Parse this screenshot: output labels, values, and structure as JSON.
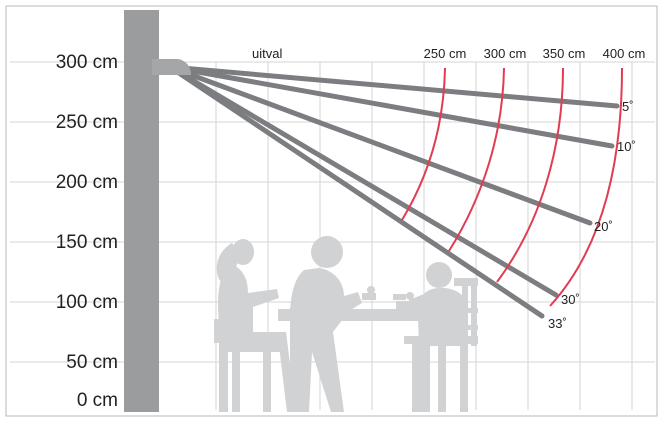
{
  "y_axis": {
    "ticks": [
      "300 cm",
      "250 cm",
      "200 cm",
      "150 cm",
      "100 cm",
      "50 cm",
      "0 cm"
    ]
  },
  "caption": "uitval",
  "distances": [
    "250 cm",
    "300 cm",
    "350 cm",
    "400 cm"
  ],
  "angles": [
    "5˚",
    "10˚",
    "20˚",
    "30˚",
    "33˚"
  ],
  "colors": {
    "pole": "#9a9c9e",
    "beam": "#7b7d80",
    "arc": "#e03c52",
    "grid": "#d6d6d6",
    "silhouette": "#d1d2d3"
  }
}
